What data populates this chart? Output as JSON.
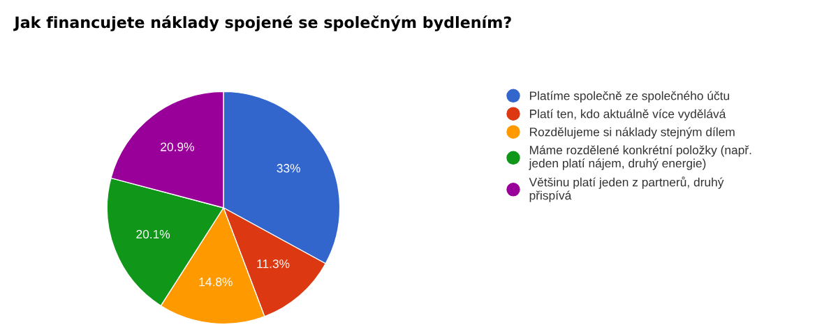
{
  "chart_data": {
    "type": "pie",
    "title": "Jak financujete náklady spojené se společným bydlením?",
    "categories": [
      "Platíme společně ze společného účtu",
      "Platí ten, kdo aktuálně více vydělává",
      "Rozdělujeme si náklady stejným dílem",
      "Máme rozdělené konkrétní položky (např.\njeden platí nájem, druhý energie)",
      "Většinu platí jeden z partnerů, druhý\npřispívá"
    ],
    "values": [
      33,
      11.3,
      14.8,
      20.1,
      20.9
    ],
    "value_labels": [
      "33%",
      "11.3%",
      "14.8%",
      "20.1%",
      "20.9%"
    ],
    "colors": [
      "#3366cc",
      "#dc3912",
      "#ff9900",
      "#109618",
      "#990099"
    ],
    "legend": "right"
  }
}
